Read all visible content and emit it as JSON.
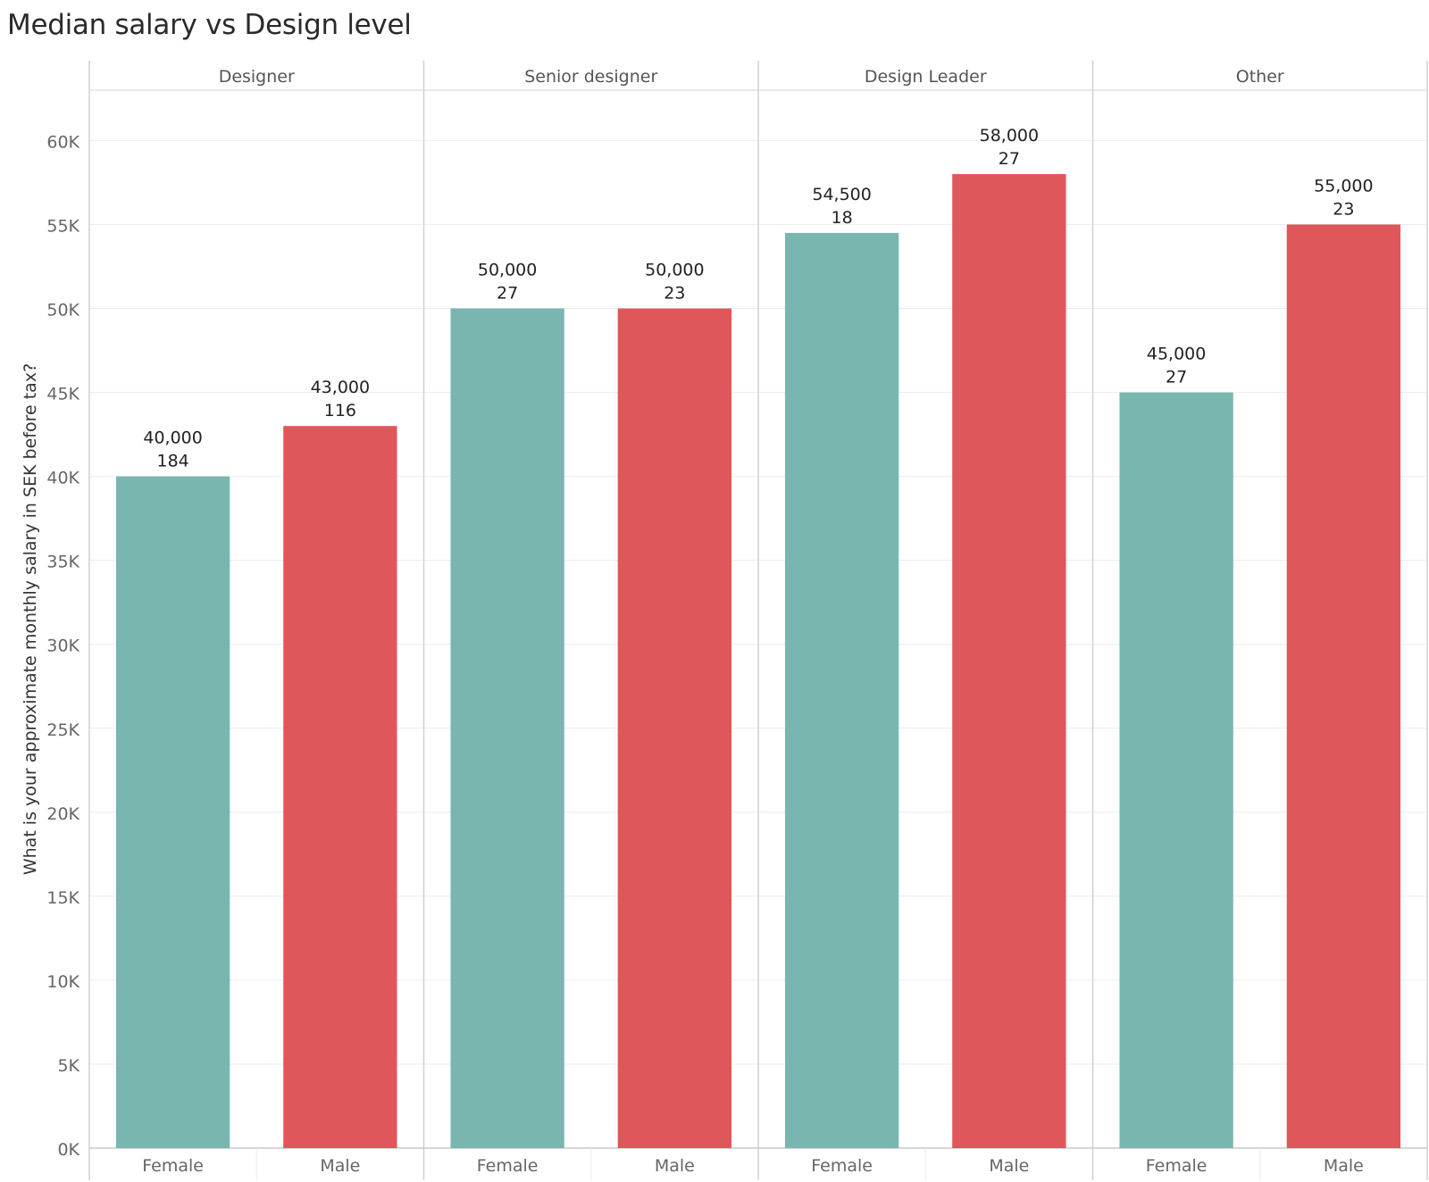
{
  "chart_data": {
    "type": "bar",
    "title": "Median salary vs Design level",
    "ylabel": "What is your approximate monthly salary in SEK before tax?",
    "xlabel": "",
    "ylim": [
      0,
      63000
    ],
    "yticks": [
      0,
      5000,
      10000,
      15000,
      20000,
      25000,
      30000,
      35000,
      40000,
      45000,
      50000,
      55000,
      60000
    ],
    "ytick_labels": [
      "0K",
      "5K",
      "10K",
      "15K",
      "20K",
      "25K",
      "30K",
      "35K",
      "40K",
      "45K",
      "50K",
      "55K",
      "60K"
    ],
    "categories": [
      "Female",
      "Male"
    ],
    "grid": true,
    "legend": "none",
    "colors": {
      "Female": "#7ab6b0",
      "Male": "#e0575b"
    },
    "panels": [
      {
        "name": "Designer",
        "bars": [
          {
            "category": "Female",
            "value": 40000,
            "label": "40,000",
            "count": "184"
          },
          {
            "category": "Male",
            "value": 43000,
            "label": "43,000",
            "count": "116"
          }
        ]
      },
      {
        "name": "Senior designer",
        "bars": [
          {
            "category": "Female",
            "value": 50000,
            "label": "50,000",
            "count": "27"
          },
          {
            "category": "Male",
            "value": 50000,
            "label": "50,000",
            "count": "23"
          }
        ]
      },
      {
        "name": "Design Leader",
        "bars": [
          {
            "category": "Female",
            "value": 54500,
            "label": "54,500",
            "count": "18"
          },
          {
            "category": "Male",
            "value": 58000,
            "label": "58,000",
            "count": "27"
          }
        ]
      },
      {
        "name": "Other",
        "bars": [
          {
            "category": "Female",
            "value": 45000,
            "label": "45,000",
            "count": "27"
          },
          {
            "category": "Male",
            "value": 55000,
            "label": "55,000",
            "count": "23"
          }
        ]
      }
    ]
  }
}
